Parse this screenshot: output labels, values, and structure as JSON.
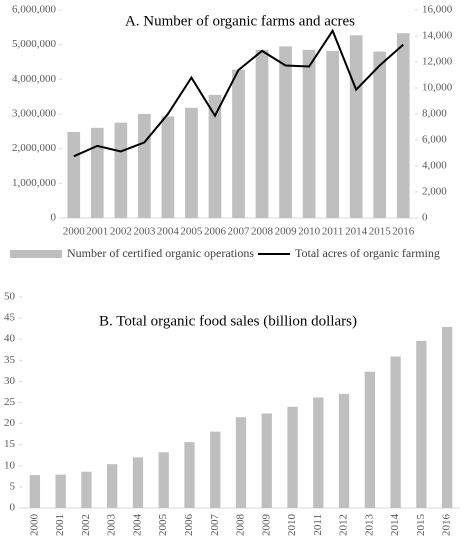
{
  "chart_data": [
    {
      "type": "bar",
      "title": "A. Number of organic farms and acres",
      "categories": [
        "2000",
        "2001",
        "2002",
        "2003",
        "2004",
        "2005",
        "2006",
        "2007",
        "2008",
        "2009",
        "2010",
        "2011",
        "2014",
        "2015",
        "2016"
      ],
      "series": [
        {
          "name": "Number of certified organic operations",
          "type": "bar",
          "axis": "y2",
          "color": "#bfbfbf",
          "values": [
            6613,
            6933,
            7333,
            8000,
            7813,
            8480,
            9467,
            11413,
            12933,
            13200,
            12933,
            12853,
            14053,
            12800,
            14213
          ]
        },
        {
          "name": "Total acres of organic farming",
          "type": "line",
          "axis": "y",
          "color": "#000000",
          "values": [
            1780000,
            2080000,
            1920000,
            2180000,
            3000000,
            4050000,
            2950000,
            4270000,
            4820000,
            4400000,
            4370000,
            5400000,
            3700000,
            4400000,
            5000000
          ]
        }
      ],
      "ylim": [
        0,
        6000000
      ],
      "yticks": [
        0,
        {
          "value": 1000000,
          "label": "1,000,000"
        },
        {
          "value": 2000000,
          "label": "2,000,000"
        },
        {
          "value": 3000000,
          "label": "3,000,000"
        },
        {
          "value": 4000000,
          "label": "4,000,000"
        },
        {
          "value": 5000000,
          "label": "5,000,000"
        },
        {
          "value": 6000000,
          "label": "6,000,000"
        }
      ],
      "y2lim": [
        0,
        16000
      ],
      "y2ticks": [
        0,
        {
          "value": 2000,
          "label": "2,000"
        },
        {
          "value": 4000,
          "label": "4,000"
        },
        {
          "value": 6000,
          "label": "6,000"
        },
        {
          "value": 8000,
          "label": "8,000"
        },
        {
          "value": 10000,
          "label": "10,000"
        },
        {
          "value": 12000,
          "label": "12,000"
        },
        {
          "value": 14000,
          "label": "14,000"
        },
        {
          "value": 16000,
          "label": "16,000"
        }
      ],
      "legend": "bottom"
    },
    {
      "type": "bar",
      "title": "B. Total organic food sales (billion dollars)",
      "categories": [
        "2000",
        "2001",
        "2002",
        "2003",
        "2004",
        "2005",
        "2006",
        "2007",
        "2008",
        "2009",
        "2010",
        "2011",
        "2012",
        "2013",
        "2014",
        "2015",
        "2016"
      ],
      "values": [
        7.8,
        7.9,
        8.6,
        10.4,
        12,
        13.2,
        15.6,
        18.1,
        21.5,
        22.4,
        24,
        26.2,
        27,
        32.3,
        35.9,
        39.6,
        42.9
      ],
      "color": "#bfbfbf",
      "ylim": [
        0,
        50
      ],
      "yticks": [
        0,
        5,
        10,
        15,
        20,
        25,
        30,
        35,
        40,
        45,
        50
      ]
    }
  ]
}
